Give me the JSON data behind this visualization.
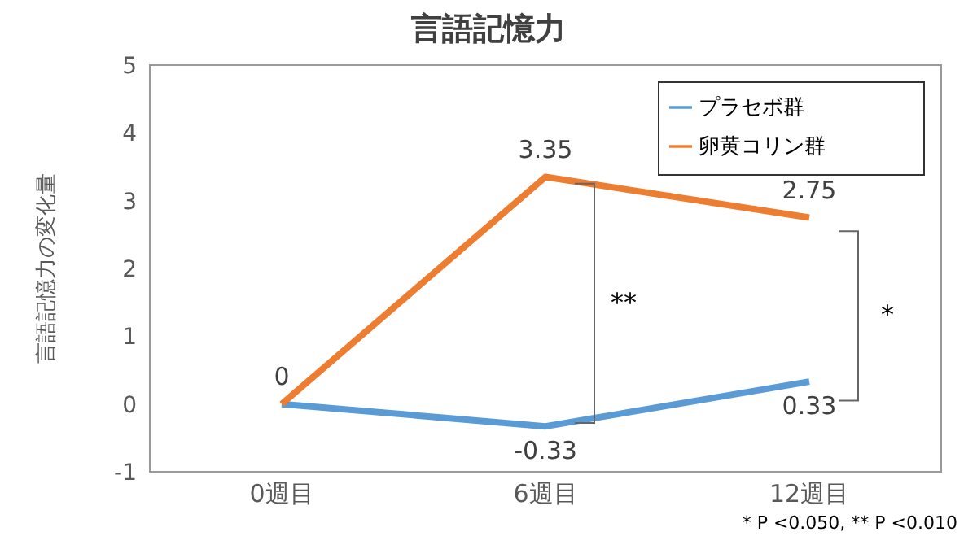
{
  "chart_data": {
    "type": "line",
    "title": "言語記憶力",
    "ylabel": "言語記憶力の変化量",
    "categories": [
      "0週目",
      "6週目",
      "12週目"
    ],
    "series": [
      {
        "name": "プラセボ群",
        "color": "#5b9bd5",
        "values": [
          0,
          -0.33,
          0.33
        ],
        "value_labels": [
          null,
          "-0.33",
          "0.33"
        ]
      },
      {
        "name": "卵黄コリン群",
        "color": "#ed7d31",
        "values": [
          0,
          3.35,
          2.75
        ],
        "value_labels": [
          "0",
          "3.35",
          "2.75"
        ]
      }
    ],
    "ylim": [
      -1,
      5
    ],
    "yticks": [
      -1,
      0,
      1,
      2,
      3,
      4,
      5
    ],
    "legend": "top right",
    "marker": "none",
    "line_style": "solid",
    "annotations": [
      "**",
      "*",
      "* P <0.050, ** P <0.010"
    ]
  }
}
